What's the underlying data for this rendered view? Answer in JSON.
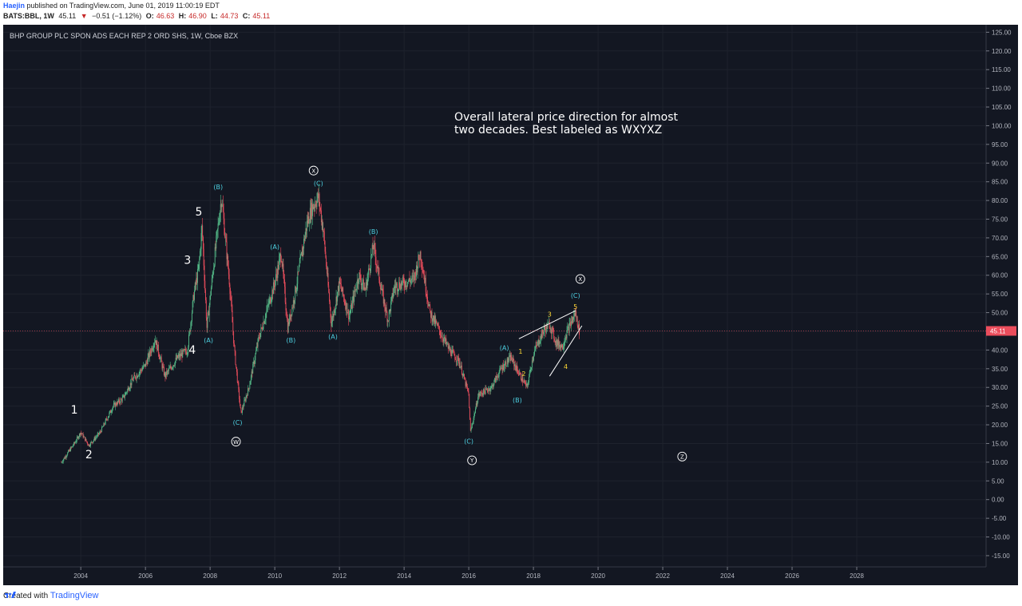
{
  "header": {
    "author": "Haejin",
    "published": "published on TradingView.com, June 01, 2019 11:00:19 EDT",
    "symbol": "BATS:BBL, 1W",
    "last": "45.11",
    "arrow": "▼",
    "change": "−0.51 (−1.12%)",
    "o_label": "O:",
    "o_value": "46.63",
    "h_label": "H:",
    "h_value": "46.90",
    "l_label": "L:",
    "l_value": "44.73",
    "c_label": "C:",
    "c_value": "45.11"
  },
  "footer": {
    "created_with": "Created with",
    "brand": "TradingView"
  },
  "chart_data": {
    "type": "candlestick",
    "title": "BHP GROUP PLC SPON ADS EACH REP 2 ORD SHS, 1W, Cboe BZX",
    "x_ticks": [
      "2004",
      "2006",
      "2008",
      "2010",
      "2012",
      "2014",
      "2016",
      "2018",
      "2020",
      "2022",
      "2024",
      "2026",
      "2028"
    ],
    "y_ticks": [
      "125.00",
      "120.00",
      "115.00",
      "110.00",
      "105.00",
      "100.00",
      "95.00",
      "90.00",
      "85.00",
      "80.00",
      "75.00",
      "70.00",
      "65.00",
      "60.00",
      "55.00",
      "50.00",
      "45.00",
      "40.00",
      "35.00",
      "30.00",
      "25.00",
      "20.00",
      "15.00",
      "10.00",
      "5.00",
      "0.00",
      "-5.00",
      "-10.00",
      "-15.00"
    ],
    "ylim": [
      -18,
      127
    ],
    "xlim": [
      2001.6,
      2032.0
    ],
    "last_price": "45.11",
    "price_path": [
      [
        2003.4,
        10
      ],
      [
        2003.8,
        15
      ],
      [
        2004.0,
        18
      ],
      [
        2004.25,
        14.5
      ],
      [
        2004.6,
        18
      ],
      [
        2005.0,
        25
      ],
      [
        2005.3,
        27
      ],
      [
        2005.6,
        32
      ],
      [
        2006.0,
        36
      ],
      [
        2006.3,
        43
      ],
      [
        2006.6,
        33
      ],
      [
        2007.0,
        38
      ],
      [
        2007.3,
        40
      ],
      [
        2007.5,
        55
      ],
      [
        2007.65,
        62
      ],
      [
        2007.75,
        73
      ],
      [
        2007.9,
        46
      ],
      [
        2008.1,
        62
      ],
      [
        2008.35,
        81
      ],
      [
        2008.6,
        58
      ],
      [
        2008.75,
        40
      ],
      [
        2008.95,
        23
      ],
      [
        2009.2,
        30
      ],
      [
        2009.5,
        43
      ],
      [
        2009.8,
        52
      ],
      [
        2010.0,
        58
      ],
      [
        2010.2,
        66
      ],
      [
        2010.4,
        46
      ],
      [
        2010.6,
        54
      ],
      [
        2010.8,
        64
      ],
      [
        2011.0,
        74
      ],
      [
        2011.15,
        78
      ],
      [
        2011.35,
        81
      ],
      [
        2011.5,
        72
      ],
      [
        2011.75,
        47
      ],
      [
        2012.0,
        58
      ],
      [
        2012.3,
        49
      ],
      [
        2012.6,
        60
      ],
      [
        2012.8,
        56
      ],
      [
        2013.05,
        68
      ],
      [
        2013.3,
        56
      ],
      [
        2013.5,
        48
      ],
      [
        2013.7,
        57
      ],
      [
        2014.0,
        58
      ],
      [
        2014.3,
        59
      ],
      [
        2014.5,
        66
      ],
      [
        2014.8,
        50
      ],
      [
        2015.1,
        45
      ],
      [
        2015.4,
        40
      ],
      [
        2015.7,
        37
      ],
      [
        2016.0,
        28
      ],
      [
        2016.05,
        18
      ],
      [
        2016.3,
        28
      ],
      [
        2016.7,
        30
      ],
      [
        2017.0,
        35
      ],
      [
        2017.3,
        38
      ],
      [
        2017.6,
        33
      ],
      [
        2017.8,
        30
      ],
      [
        2018.0,
        39
      ],
      [
        2018.3,
        45
      ],
      [
        2018.5,
        47
      ],
      [
        2018.7,
        42
      ],
      [
        2018.9,
        41
      ],
      [
        2019.0,
        44
      ],
      [
        2019.2,
        48
      ],
      [
        2019.3,
        50
      ],
      [
        2019.42,
        45.11
      ]
    ],
    "annotations": [
      {
        "text": "1",
        "x": 2003.8,
        "y": 23,
        "color": "#ffffff",
        "size": 14
      },
      {
        "text": "2",
        "x": 2004.25,
        "y": 11,
        "color": "#ffffff",
        "size": 14
      },
      {
        "text": "3",
        "x": 2007.3,
        "y": 63,
        "color": "#ffffff",
        "size": 14
      },
      {
        "text": "4",
        "x": 2007.45,
        "y": 39,
        "color": "#ffffff",
        "size": 14
      },
      {
        "text": "5",
        "x": 2007.65,
        "y": 76,
        "color": "#ffffff",
        "size": 14
      },
      {
        "text": "(A)",
        "x": 2007.95,
        "y": 42,
        "color": "#4dd0e1",
        "size": 8
      },
      {
        "text": "(B)",
        "x": 2008.25,
        "y": 83,
        "color": "#4dd0e1",
        "size": 8
      },
      {
        "text": "(C)",
        "x": 2008.85,
        "y": 20,
        "color": "#4dd0e1",
        "size": 8
      },
      {
        "text": "(A)",
        "x": 2010.0,
        "y": 67,
        "color": "#4dd0e1",
        "size": 8
      },
      {
        "text": "(B)",
        "x": 2010.5,
        "y": 42,
        "color": "#4dd0e1",
        "size": 8
      },
      {
        "text": "(C)",
        "x": 2011.35,
        "y": 84,
        "color": "#4dd0e1",
        "size": 8
      },
      {
        "text": "(A)",
        "x": 2011.8,
        "y": 43,
        "color": "#4dd0e1",
        "size": 8
      },
      {
        "text": "(B)",
        "x": 2013.05,
        "y": 71,
        "color": "#4dd0e1",
        "size": 8
      },
      {
        "text": "(C)",
        "x": 2016.0,
        "y": 15,
        "color": "#4dd0e1",
        "size": 8
      },
      {
        "text": "(A)",
        "x": 2017.1,
        "y": 40,
        "color": "#4dd0e1",
        "size": 8
      },
      {
        "text": "(B)",
        "x": 2017.5,
        "y": 26,
        "color": "#4dd0e1",
        "size": 8
      },
      {
        "text": "(C)",
        "x": 2019.3,
        "y": 54,
        "color": "#4dd0e1",
        "size": 8
      },
      {
        "text": "1",
        "x": 2017.6,
        "y": 39,
        "color": "#fdd835",
        "size": 8
      },
      {
        "text": "2",
        "x": 2017.7,
        "y": 33,
        "color": "#fdd835",
        "size": 8
      },
      {
        "text": "3",
        "x": 2018.5,
        "y": 49,
        "color": "#fdd835",
        "size": 8
      },
      {
        "text": "4",
        "x": 2019.0,
        "y": 35,
        "color": "#fdd835",
        "size": 8
      },
      {
        "text": "5",
        "x": 2019.3,
        "y": 51,
        "color": "#fdd835",
        "size": 8
      }
    ],
    "circled_labels": [
      {
        "text": "W",
        "x": 2008.8,
        "y": 15.5
      },
      {
        "text": "X",
        "x": 2011.2,
        "y": 88
      },
      {
        "text": "Y",
        "x": 2016.1,
        "y": 10.5
      },
      {
        "text": "X",
        "x": 2019.45,
        "y": 59
      },
      {
        "text": "Z",
        "x": 2022.6,
        "y": 11.5
      }
    ],
    "trendlines": [
      {
        "from": [
          2017.55,
          43
        ],
        "to": [
          2019.3,
          50.5
        ]
      },
      {
        "from": [
          2018.5,
          33
        ],
        "to": [
          2019.5,
          46.5
        ]
      }
    ],
    "note": "Overall lateral price direction for almost two decades. Best labeled as WXYXZ"
  }
}
